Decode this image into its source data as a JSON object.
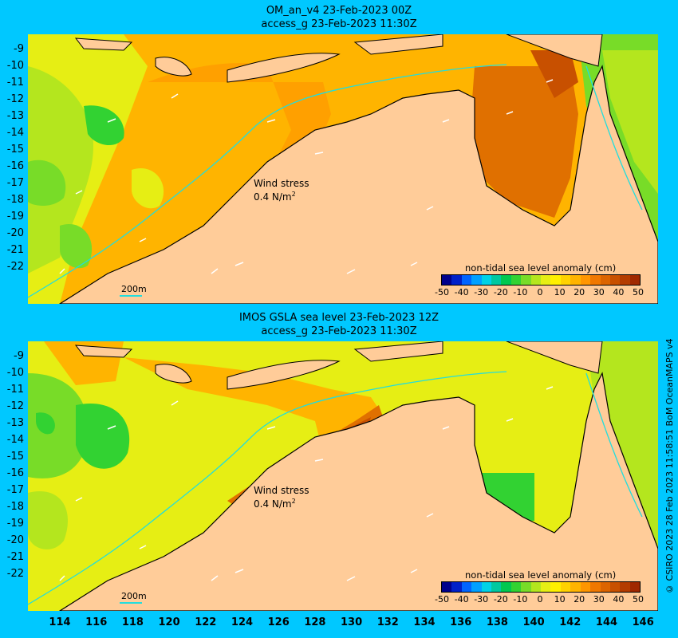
{
  "panel1": {
    "title_line1": "OM_an_v4  23-Feb-2023 00Z",
    "title_line2": "access_g 23-Feb-2023 11:30Z"
  },
  "panel2": {
    "title_line1": "IMOS GSLA sea level  23-Feb-2023 12Z",
    "title_line2": "access_g 23-Feb-2023 11:30Z"
  },
  "wind_label": "Wind stress",
  "wind_value": "0.4 N/m",
  "wind_exp": "2",
  "scale_bar_label": "200m",
  "colorbar": {
    "title": "non-tidal sea level anomaly (cm)",
    "ticks": [
      "-50",
      "-40",
      "-30",
      "-20",
      "-10",
      "0",
      "10",
      "20",
      "30",
      "40",
      "50"
    ],
    "colors": [
      "#00008c",
      "#0020c8",
      "#0064ff",
      "#00a0ff",
      "#00d2e6",
      "#00c8a0",
      "#00c850",
      "#32d232",
      "#78dc28",
      "#b4e61e",
      "#e6ee14",
      "#fff000",
      "#ffd200",
      "#ffb400",
      "#ff9600",
      "#f07800",
      "#dc6400",
      "#c85000",
      "#b43c00",
      "#a02800"
    ]
  },
  "lat_labels": [
    "-9",
    "-10",
    "-11",
    "-12",
    "-13",
    "-14",
    "-15",
    "-16",
    "-17",
    "-18",
    "-19",
    "-20",
    "-21",
    "-22"
  ],
  "lon_labels": [
    "114",
    "116",
    "118",
    "120",
    "122",
    "124",
    "126",
    "128",
    "130",
    "132",
    "134",
    "136",
    "138",
    "140",
    "142",
    "144",
    "146"
  ],
  "credit": "© CSIRO 2023   28 Feb 2023 11:58:51 BoM OceanMAPS v4"
}
